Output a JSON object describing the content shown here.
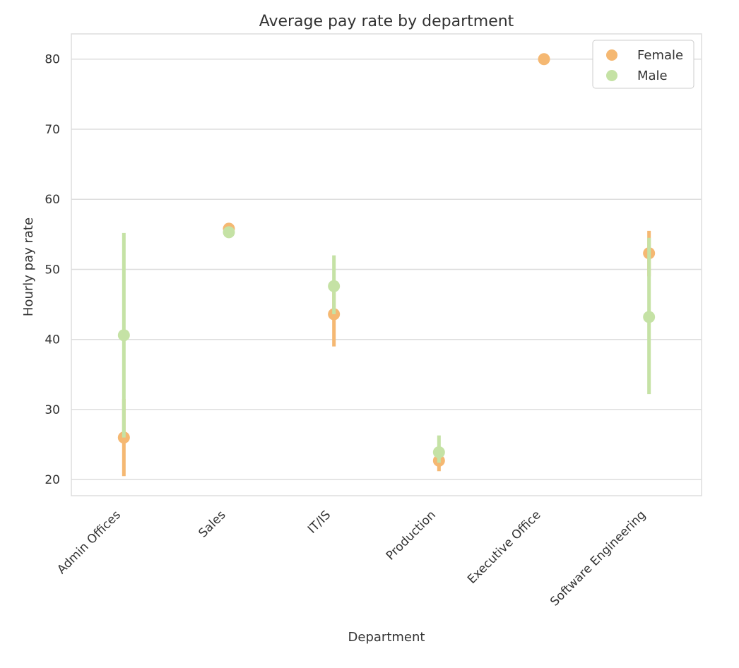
{
  "chart_data": {
    "type": "scatter",
    "title": "Average pay rate by department",
    "xlabel": "Department",
    "ylabel": "Hourly pay rate",
    "categories": [
      "Admin Offices",
      "Sales",
      "IT/IS",
      "Production",
      "Executive Office",
      "Software Engineering"
    ],
    "yticks": [
      "20",
      "30",
      "40",
      "50",
      "60",
      "70",
      "80"
    ],
    "ylim": [
      17.7,
      83.6
    ],
    "grid": true,
    "legend_position": "top-right",
    "series": [
      {
        "name": "Female",
        "color": "#f5b872",
        "values": [
          26.0,
          55.8,
          43.6,
          22.7,
          80.0,
          52.3
        ],
        "ci_low": [
          20.5,
          55.3,
          39.0,
          21.2,
          80.0,
          49.0
        ],
        "ci_high": [
          31.5,
          56.4,
          48.0,
          24.3,
          80.0,
          55.5
        ]
      },
      {
        "name": "Male",
        "color": "#c5e2a5",
        "values": [
          40.6,
          55.3,
          47.6,
          23.9,
          null,
          43.2
        ],
        "ci_low": [
          26.0,
          55.0,
          43.6,
          22.4,
          null,
          32.2
        ],
        "ci_high": [
          55.2,
          55.8,
          52.0,
          26.3,
          null,
          54.5
        ]
      }
    ]
  }
}
